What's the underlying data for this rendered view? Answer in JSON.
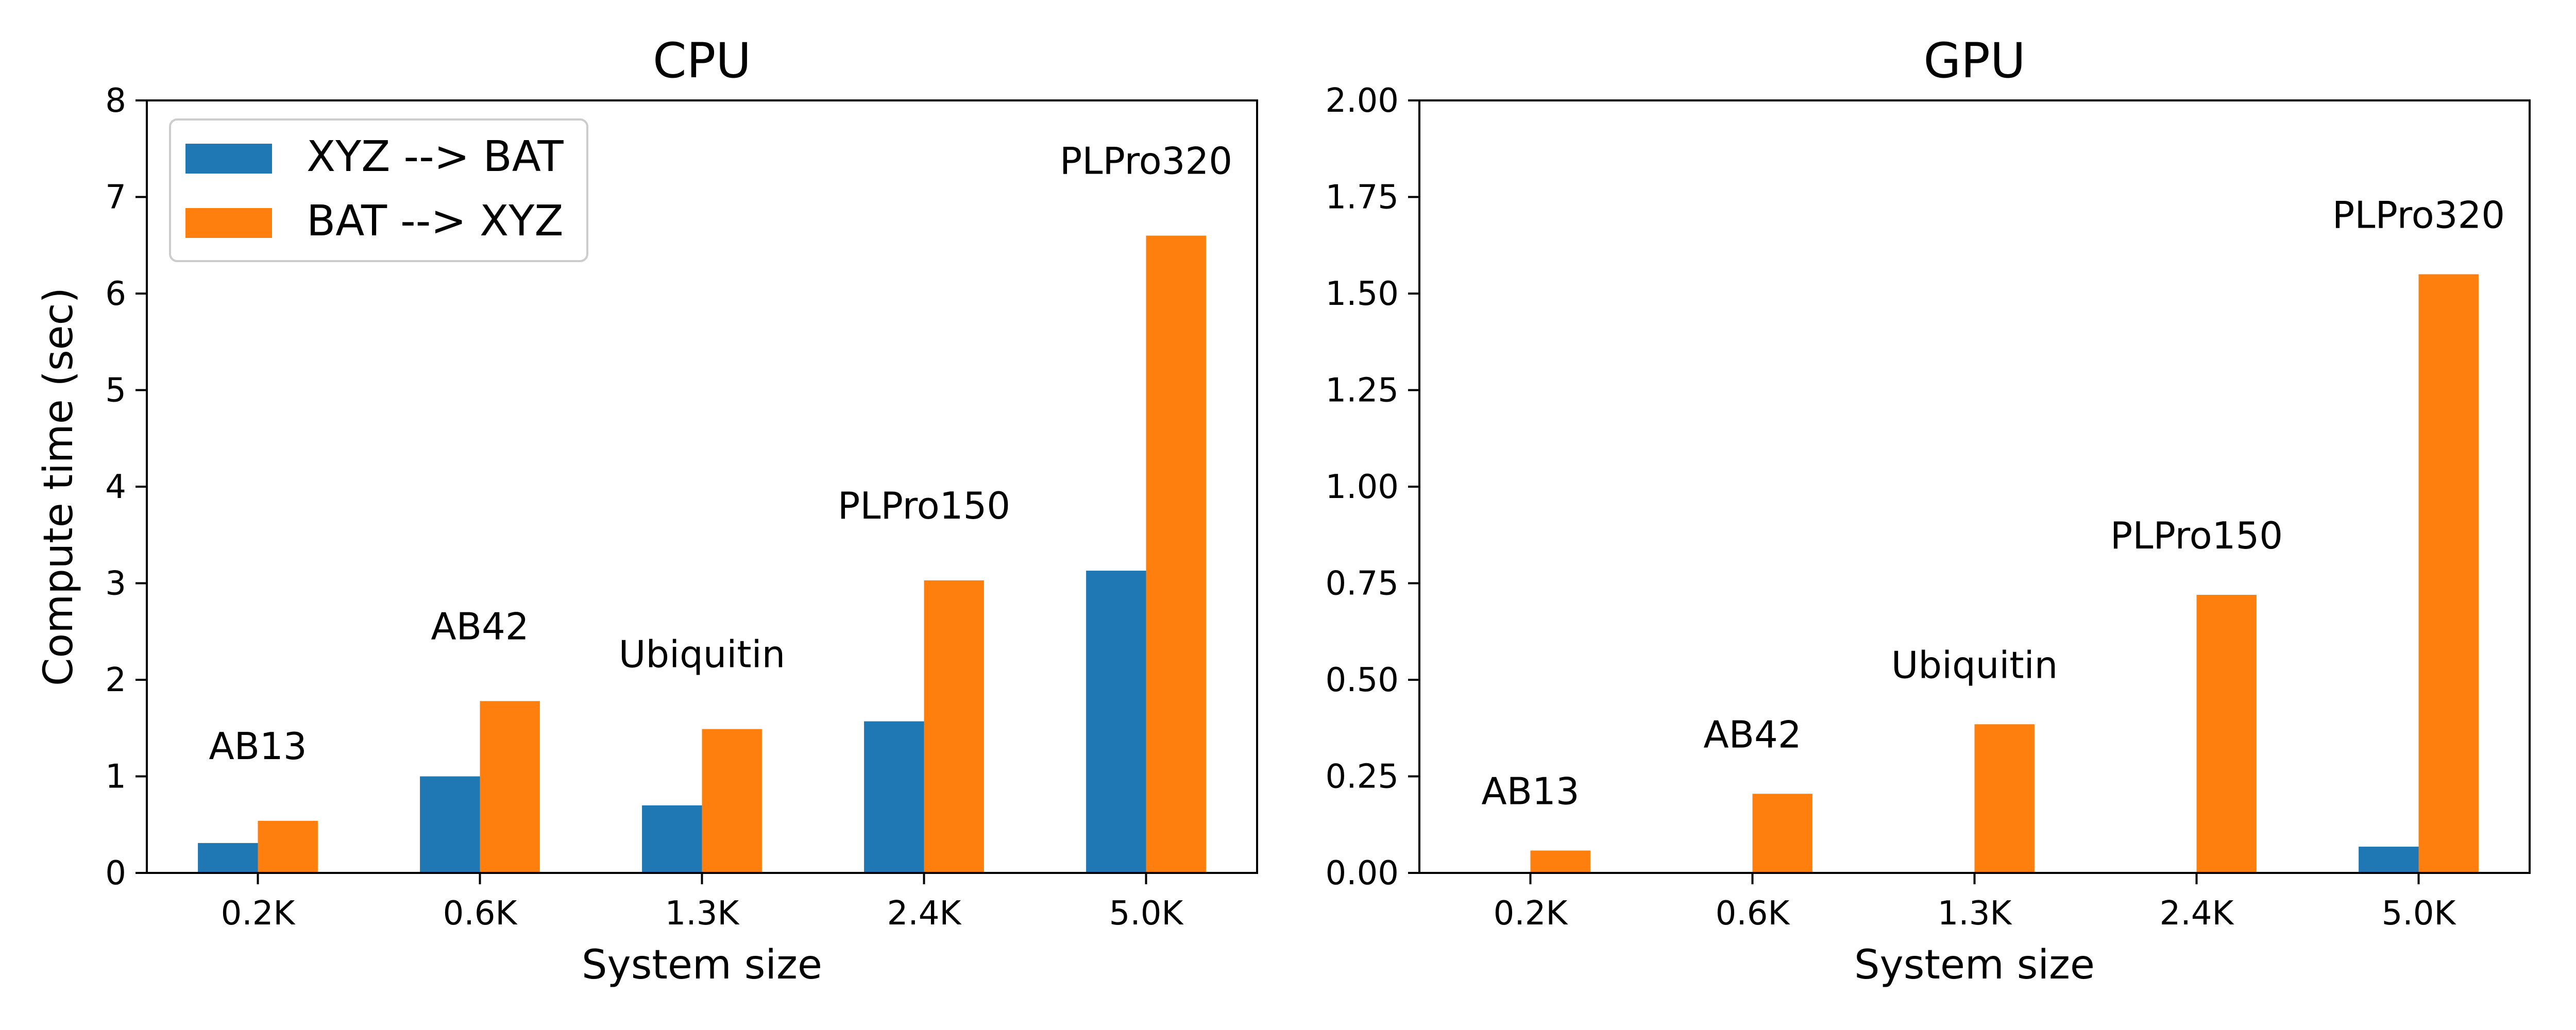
{
  "figure": {
    "colors": {
      "xyz_to_bat": "#1f77b4",
      "bat_to_xyz": "#ff7f0e"
    },
    "legend": {
      "placement": "upper-left-of-left-panel",
      "entries": [
        "XYZ --> BAT",
        "BAT --> XYZ"
      ]
    }
  },
  "chart_data": [
    {
      "type": "bar",
      "title": "CPU",
      "xlabel": "System size",
      "ylabel": "Compute time (sec)",
      "categories": [
        "0.2K",
        "0.6K",
        "1.3K",
        "2.4K",
        "5.0K"
      ],
      "annotations": [
        "AB13",
        "AB42",
        "Ubiquitin",
        "PLPro150",
        "PLPro320"
      ],
      "ylim": [
        0,
        8
      ],
      "yticks": [
        "0",
        "1",
        "2",
        "3",
        "4",
        "5",
        "6",
        "7",
        "8"
      ],
      "series": [
        {
          "name": "XYZ --> BAT",
          "values": [
            0.31,
            1.0,
            0.7,
            1.57,
            3.13
          ]
        },
        {
          "name": "BAT --> XYZ",
          "values": [
            0.54,
            1.78,
            1.49,
            3.03,
            6.6
          ]
        }
      ],
      "grid": false
    },
    {
      "type": "bar",
      "title": "GPU",
      "xlabel": "System size",
      "ylabel": "",
      "categories": [
        "0.2K",
        "0.6K",
        "1.3K",
        "2.4K",
        "5.0K"
      ],
      "annotations": [
        "AB13",
        "AB42",
        "Ubiquitin",
        "PLPro150",
        "PLPro320"
      ],
      "ylim": [
        0,
        2.0
      ],
      "yticks": [
        "0.00",
        "0.25",
        "0.50",
        "0.75",
        "1.00",
        "1.25",
        "1.50",
        "1.75",
        "2.00"
      ],
      "series": [
        {
          "name": "XYZ --> BAT",
          "values": [
            0.0,
            0.0,
            0.0,
            0.0,
            0.068
          ]
        },
        {
          "name": "BAT --> XYZ",
          "values": [
            0.058,
            0.205,
            0.385,
            0.72,
            1.55
          ]
        }
      ],
      "grid": false
    }
  ]
}
